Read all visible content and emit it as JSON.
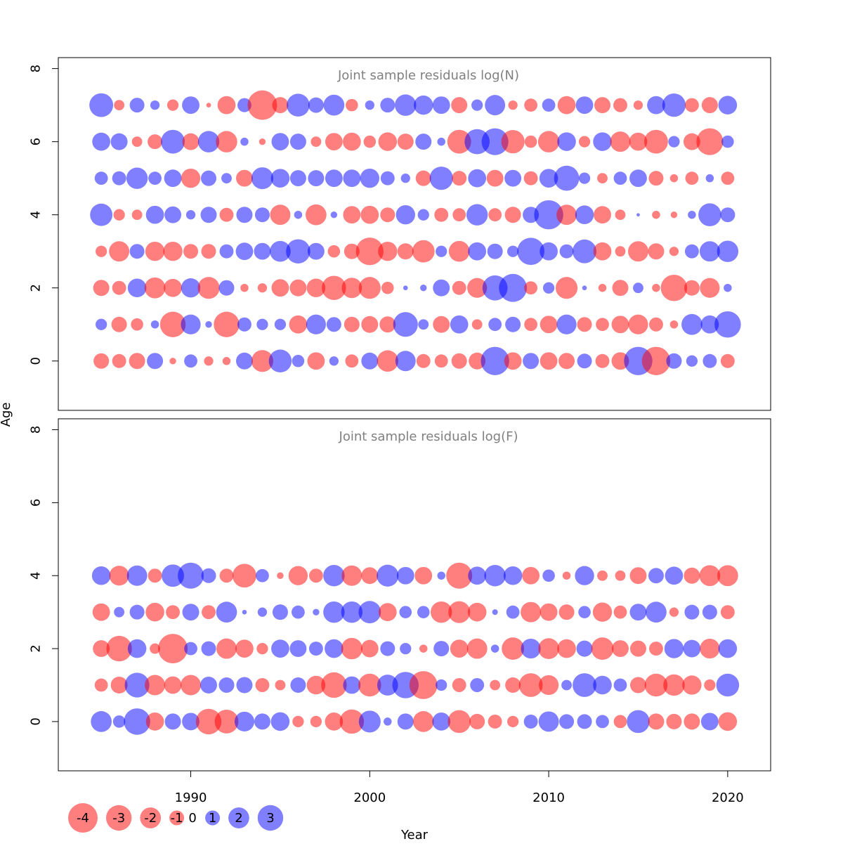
{
  "chart_data": {
    "type": "scatter",
    "encoding": "bubble",
    "x_label": "Year",
    "y_label": "Age",
    "xlim": [
      1982.6,
      2022.4
    ],
    "ylim": [
      -1.35,
      8.3
    ],
    "x_ticks": [
      1990,
      2000,
      2010,
      2020
    ],
    "y_ticks": [
      0,
      2,
      4,
      6,
      8
    ],
    "years": [
      1985,
      1986,
      1987,
      1988,
      1989,
      1990,
      1991,
      1992,
      1993,
      1994,
      1995,
      1996,
      1997,
      1998,
      1999,
      2000,
      2001,
      2002,
      2003,
      2004,
      2005,
      2006,
      2007,
      2008,
      2009,
      2010,
      2011,
      2012,
      2013,
      2014,
      2015,
      2016,
      2017,
      2018,
      2019,
      2020
    ],
    "positive_color": "#0000ff",
    "negative_color": "#ff0000",
    "legend": {
      "values": [
        -4,
        -3,
        -2,
        -1,
        0,
        1,
        2,
        3
      ],
      "labels": [
        "-4",
        "-3",
        "-2",
        "-1",
        "0",
        "1",
        "2",
        "3"
      ]
    },
    "panels": [
      {
        "title": "Joint sample residuals log(N)",
        "ages": [
          0,
          1,
          2,
          3,
          4,
          5,
          6,
          7
        ],
        "residuals": [
          [
            -1.1,
            -0.9,
            -1.2,
            1.2,
            -0.2,
            0.8,
            -0.4,
            -0.3,
            1.3,
            -2.2,
            2.4,
            0.7,
            -1.4,
            0.4,
            -0.8,
            1.3,
            -2.1,
            1.9,
            -0.9,
            -0.8,
            -1.1,
            -1.3,
            3.7,
            -1.4,
            1.2,
            -1.4,
            -1.2,
            1.0,
            -0.9,
            -1.4,
            3.7,
            -3.7,
            1.1,
            0.6,
            0.9,
            -0.9
          ],
          [
            0.6,
            -1.1,
            -0.7,
            0.3,
            -3.0,
            1.8,
            0.2,
            -3.0,
            0.9,
            0.6,
            0.6,
            -1.5,
            1.8,
            1.0,
            -1.1,
            -1.3,
            -1.2,
            2.8,
            0.5,
            -1.3,
            1.5,
            -0.5,
            0.8,
            1.1,
            -0.8,
            -1.4,
            1.8,
            -1.0,
            -0.8,
            -1.4,
            -1.8,
            -0.9,
            -0.3,
            2.0,
            1.5,
            3.2
          ],
          [
            -1.2,
            -0.9,
            1.6,
            -2.0,
            -1.5,
            1.7,
            -2.2,
            1.1,
            -0.3,
            -0.4,
            -1.4,
            -1.3,
            -1.6,
            -2.7,
            -1.9,
            -2.2,
            -0.7,
            0.1,
            0.2,
            1.3,
            -0.9,
            -1.8,
            2.9,
            3.6,
            -0.8,
            0.6,
            -2.2,
            0.1,
            -0.3,
            -1.2,
            0.5,
            -0.3,
            -3.2,
            -1.1,
            -1.8,
            0.3
          ],
          [
            -0.6,
            -1.9,
            1.0,
            -1.7,
            -1.7,
            -1.0,
            -1.0,
            0.9,
            1.4,
            1.3,
            2.0,
            2.7,
            1.3,
            -0.7,
            -1.1,
            -3.5,
            -1.7,
            -1.2,
            -2.3,
            0.6,
            -2.0,
            1.5,
            1.1,
            0.6,
            3.4,
            1.5,
            0.9,
            2.6,
            -1.5,
            -0.5,
            -1.9,
            -1.2,
            -0.4,
            0.9,
            1.9,
            2.1
          ],
          [
            2.3,
            -0.6,
            -0.5,
            1.5,
            1.3,
            0.4,
            1.2,
            -0.9,
            1.2,
            1.0,
            -1.9,
            0.3,
            -2.0,
            0.2,
            -1.4,
            -1.5,
            -1.0,
            1.7,
            0.6,
            -0.9,
            -0.8,
            2.1,
            -0.8,
            -1.2,
            1.2,
            3.9,
            -1.9,
            1.6,
            -1.4,
            -0.5,
            0.05,
            -0.3,
            -0.2,
            0.3,
            2.4,
            1.0
          ],
          [
            0.8,
            0.9,
            2.1,
            0.8,
            1.4,
            -1.7,
            1.1,
            0.5,
            -1.3,
            2.2,
            1.6,
            1.2,
            1.2,
            1.4,
            1.4,
            1.7,
            0.9,
            0.4,
            -1.1,
            2.5,
            -1.0,
            1.5,
            -1.3,
            1.3,
            -0.9,
            1.6,
            2.9,
            0.6,
            -0.5,
            0.8,
            1.4,
            -1.0,
            -0.3,
            -0.8,
            0.3,
            -0.8
          ],
          [
            1.5,
            1.3,
            -0.5,
            -1.0,
            2.6,
            -1.3,
            2.1,
            -2.1,
            0.3,
            -0.2,
            1.4,
            1.2,
            -0.5,
            -1.4,
            -1.5,
            -0.7,
            -1.6,
            -1.2,
            1.2,
            0.3,
            -2.6,
            2.9,
            3.3,
            -2.5,
            -0.7,
            -2.1,
            1.6,
            -0.6,
            1.6,
            -1.9,
            -1.5,
            -2.6,
            0.6,
            -1.3,
            -3.3,
            0.7
          ],
          [
            2.6,
            -0.5,
            1.0,
            0.4,
            -0.6,
            1.4,
            -0.1,
            -1.5,
            0.9,
            -4.0,
            -1.2,
            2.4,
            1.1,
            2.0,
            -0.7,
            0.4,
            1.0,
            2.1,
            1.7,
            1.4,
            -1.2,
            0.6,
            1.9,
            -0.4,
            -0.8,
            0.8,
            -1.5,
            1.4,
            -1.2,
            -0.9,
            -0.4,
            1.5,
            2.5,
            -0.9,
            -1.2,
            1.6
          ]
        ]
      },
      {
        "title": "Joint sample residuals log(F)",
        "ages": [
          0,
          1,
          2,
          3,
          4
        ],
        "residuals": [
          [
            2.0,
            0.7,
            3.2,
            -1.5,
            1.2,
            1.4,
            -3.0,
            -2.6,
            1.8,
            1.2,
            1.6,
            -0.6,
            -0.6,
            -1.5,
            -2.7,
            2.2,
            0.3,
            1.2,
            -2.0,
            1.5,
            -2.4,
            -1.1,
            -0.9,
            -0.6,
            0.9,
            1.9,
            1.0,
            1.0,
            0.8,
            -0.8,
            2.4,
            -1.2,
            -1.1,
            -1.2,
            1.4,
            -1.6
          ],
          [
            -0.8,
            -1.3,
            2.8,
            -1.9,
            -1.4,
            -1.9,
            1.3,
            1.1,
            1.2,
            -0.9,
            -0.5,
            1.1,
            -1.6,
            -3.0,
            1.4,
            -2.4,
            2.0,
            3.2,
            -3.6,
            0.6,
            -0.9,
            0.9,
            -0.5,
            -1.1,
            -2.6,
            -1.8,
            0.5,
            2.6,
            1.6,
            0.8,
            -1.2,
            -2.4,
            -2.1,
            -1.7,
            -0.6,
            2.4
          ],
          [
            -1.3,
            -3.0,
            1.6,
            -0.5,
            -4.0,
            0.8,
            1.0,
            -1.9,
            -1.5,
            -0.6,
            1.5,
            1.3,
            0.9,
            1.6,
            -2.1,
            -1.4,
            1.0,
            0.6,
            -0.3,
            1.1,
            -1.5,
            -1.9,
            0.3,
            -2.3,
            1.8,
            -2.0,
            -1.6,
            1.2,
            -2.3,
            -1.3,
            -1.2,
            -0.9,
            1.7,
            1.4,
            -1.8,
            1.6
          ],
          [
            -1.4,
            0.5,
            1.0,
            -1.6,
            -0.9,
            1.3,
            -0.9,
            2.0,
            0.1,
            0.4,
            1.1,
            0.8,
            0.2,
            2.1,
            2.1,
            2.3,
            -1.5,
            0.7,
            0.7,
            -2.1,
            -2.2,
            -1.6,
            0.15,
            0.8,
            -1.9,
            -1.4,
            -1.1,
            0.7,
            -1.7,
            -0.8,
            1.3,
            2.0,
            -0.4,
            1.0,
            1.0,
            -0.9
          ],
          [
            1.6,
            -1.8,
            1.9,
            -0.9,
            2.3,
            3.1,
            1.0,
            -0.9,
            -2.6,
            0.8,
            -0.2,
            -1.7,
            -0.9,
            2.1,
            -1.9,
            -1.3,
            2.2,
            1.4,
            -1.4,
            0.3,
            -3.1,
            1.5,
            2.1,
            1.6,
            -1.4,
            0.7,
            -0.3,
            1.7,
            -0.5,
            -0.5,
            -1.3,
            1.1,
            1.5,
            -1.2,
            -2.0,
            -2.0
          ]
        ]
      }
    ]
  }
}
